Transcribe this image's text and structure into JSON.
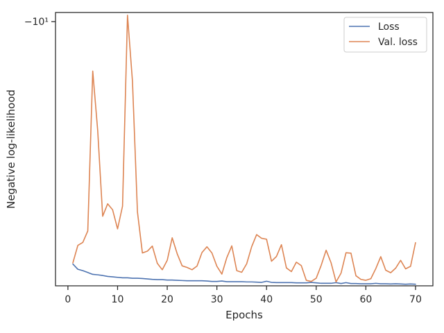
{
  "chart_data": {
    "type": "line",
    "xlabel": "Epochs",
    "ylabel": "Negative log-likelihood",
    "x_ticks": [
      0,
      10,
      20,
      30,
      40,
      50,
      60,
      70
    ],
    "y_tick_label": "−10¹",
    "y_tick_value": -10,
    "xlim": [
      -2.5,
      73.5
    ],
    "ylim": [
      -21.5,
      -9.6
    ],
    "y_scale": "symlog",
    "legend_position": "top-right",
    "grid": false,
    "colors": {
      "Loss": "#4c72b0",
      "Val. loss": "#dd8452",
      "axes": "#262626"
    },
    "x": [
      1,
      2,
      3,
      4,
      5,
      6,
      7,
      8,
      9,
      10,
      11,
      12,
      13,
      14,
      15,
      16,
      17,
      18,
      19,
      20,
      21,
      22,
      23,
      24,
      25,
      26,
      27,
      28,
      29,
      30,
      31,
      32,
      33,
      34,
      35,
      36,
      37,
      38,
      39,
      40,
      41,
      42,
      43,
      44,
      45,
      46,
      47,
      48,
      49,
      50,
      51,
      52,
      53,
      54,
      55,
      56,
      57,
      58,
      59,
      60,
      61,
      62,
      63,
      64,
      65,
      66,
      67,
      68,
      69,
      70
    ],
    "series": [
      {
        "name": "Loss",
        "values": [
          -20.55,
          -20.78,
          -20.84,
          -20.92,
          -21.0,
          -21.02,
          -21.05,
          -21.09,
          -21.11,
          -21.13,
          -21.15,
          -21.15,
          -21.17,
          -21.17,
          -21.18,
          -21.2,
          -21.22,
          -21.23,
          -21.23,
          -21.25,
          -21.25,
          -21.26,
          -21.27,
          -21.28,
          -21.28,
          -21.28,
          -21.28,
          -21.29,
          -21.31,
          -21.31,
          -21.29,
          -21.32,
          -21.32,
          -21.32,
          -21.32,
          -21.33,
          -21.33,
          -21.34,
          -21.35,
          -21.3,
          -21.35,
          -21.36,
          -21.36,
          -21.36,
          -21.36,
          -21.37,
          -21.37,
          -21.37,
          -21.35,
          -21.37,
          -21.39,
          -21.39,
          -21.39,
          -21.36,
          -21.4,
          -21.36,
          -21.4,
          -21.4,
          -21.41,
          -21.41,
          -21.41,
          -21.39,
          -21.41,
          -21.41,
          -21.42,
          -21.41,
          -21.42,
          -21.43,
          -21.42,
          -21.43
        ]
      },
      {
        "name": "Val. loss",
        "values": [
          -20.5,
          -19.74,
          -19.61,
          -19.11,
          -12.15,
          -14.74,
          -18.47,
          -17.93,
          -18.19,
          -19.02,
          -18.03,
          -9.72,
          -12.6,
          -18.28,
          -20.07,
          -19.99,
          -19.77,
          -20.52,
          -20.8,
          -20.39,
          -19.41,
          -20.1,
          -20.63,
          -20.7,
          -20.8,
          -20.64,
          -20.05,
          -19.8,
          -20.07,
          -20.65,
          -20.99,
          -20.27,
          -19.76,
          -20.84,
          -20.91,
          -20.54,
          -19.8,
          -19.27,
          -19.43,
          -19.47,
          -20.43,
          -20.22,
          -19.71,
          -20.72,
          -20.88,
          -20.47,
          -20.62,
          -21.26,
          -21.31,
          -21.17,
          -20.61,
          -19.95,
          -20.5,
          -21.33,
          -20.95,
          -20.06,
          -20.08,
          -21.06,
          -21.22,
          -21.26,
          -21.19,
          -20.75,
          -20.23,
          -20.82,
          -20.93,
          -20.73,
          -20.39,
          -20.76,
          -20.65,
          -19.62
        ]
      }
    ]
  }
}
